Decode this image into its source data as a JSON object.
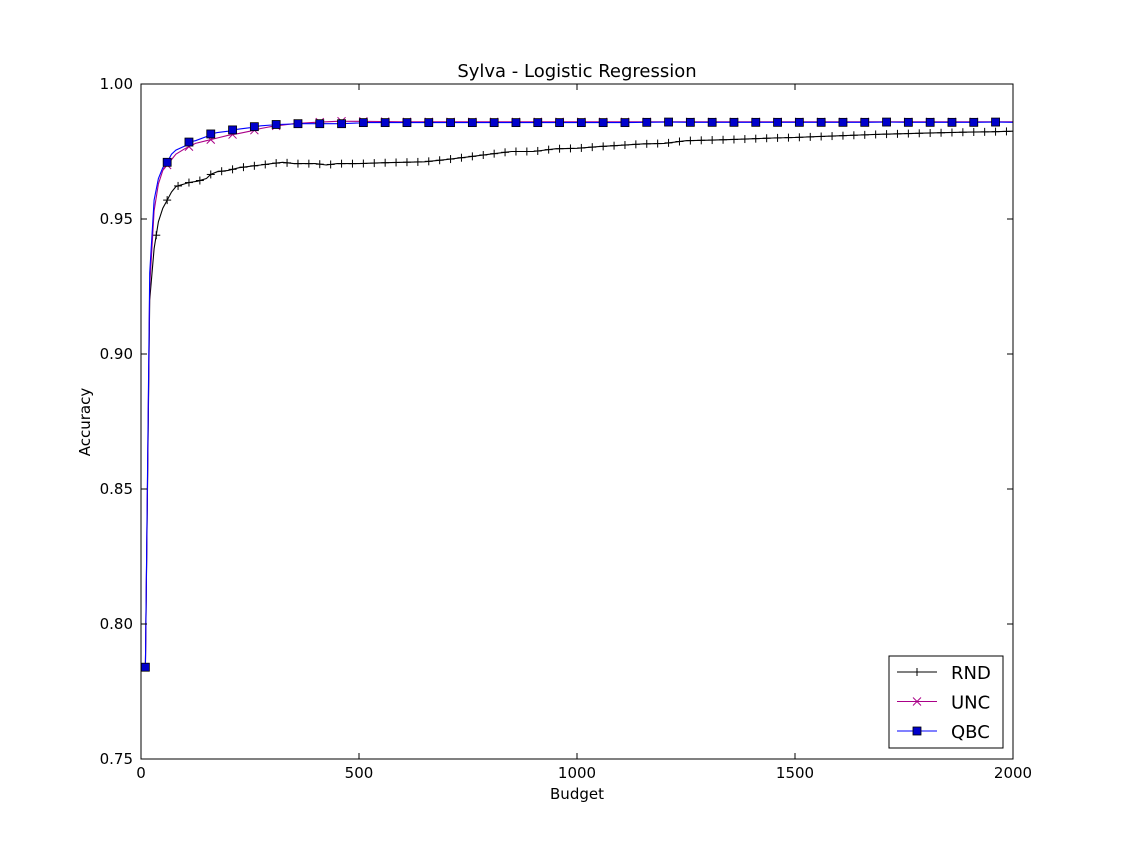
{
  "chart_data": {
    "type": "line",
    "title": "Sylva - Logistic Regression",
    "xlabel": "Budget",
    "ylabel": "Accuracy",
    "xlim": [
      0,
      2000
    ],
    "ylim": [
      0.75,
      1.0
    ],
    "xticks": [
      0,
      500,
      1000,
      1500,
      2000
    ],
    "xtick_labels": [
      "0",
      "500",
      "1000",
      "1500",
      "2000"
    ],
    "yticks": [
      0.75,
      0.8,
      0.85,
      0.9,
      0.95,
      1.0
    ],
    "ytick_labels": [
      "0.75",
      "0.80",
      "0.85",
      "0.90",
      "0.95",
      "1.00"
    ],
    "grid": false,
    "legend_position": "bottom-right",
    "series": [
      {
        "name": "RND",
        "color": "#000000",
        "marker": "plus",
        "x": [
          10,
          20,
          30,
          40,
          50,
          60,
          70,
          80,
          90,
          100,
          110,
          130,
          150,
          160,
          175,
          200,
          225,
          250,
          275,
          300,
          325,
          350,
          375,
          400,
          425,
          450,
          475,
          500,
          550,
          600,
          650,
          700,
          750,
          800,
          850,
          900,
          950,
          1000,
          1050,
          1100,
          1150,
          1200,
          1250,
          1300,
          1350,
          1400,
          1450,
          1500,
          1550,
          1600,
          1650,
          1700,
          1750,
          1800,
          1850,
          1900,
          1950,
          2000
        ],
        "y": [
          0.784,
          0.92,
          0.939,
          0.949,
          0.954,
          0.957,
          0.96,
          0.962,
          0.9625,
          0.963,
          0.9635,
          0.964,
          0.965,
          0.9665,
          0.9675,
          0.968,
          0.969,
          0.9695,
          0.97,
          0.9705,
          0.971,
          0.9705,
          0.9705,
          0.9705,
          0.97,
          0.9705,
          0.9705,
          0.9705,
          0.9708,
          0.971,
          0.9712,
          0.972,
          0.973,
          0.974,
          0.975,
          0.975,
          0.976,
          0.9762,
          0.9768,
          0.9773,
          0.9778,
          0.978,
          0.979,
          0.9792,
          0.9794,
          0.9797,
          0.98,
          0.9802,
          0.9805,
          0.9808,
          0.9811,
          0.9814,
          0.9816,
          0.9818,
          0.982,
          0.9822,
          0.9823,
          0.9825
        ],
        "marker_every": 25
      },
      {
        "name": "UNC",
        "color": "#aa0088",
        "marker": "x",
        "x": [
          10,
          20,
          30,
          40,
          50,
          60,
          70,
          80,
          100,
          125,
          150,
          175,
          200,
          225,
          250,
          275,
          300,
          350,
          400,
          450,
          500,
          550,
          600,
          700,
          800,
          900,
          1000,
          1100,
          1200,
          1300,
          1400,
          1500,
          1600,
          1700,
          1800,
          1900,
          2000
        ],
        "y": [
          0.784,
          0.925,
          0.953,
          0.963,
          0.968,
          0.97,
          0.972,
          0.974,
          0.976,
          0.978,
          0.979,
          0.98,
          0.981,
          0.9817,
          0.9825,
          0.9835,
          0.9843,
          0.9853,
          0.9858,
          0.9862,
          0.9862,
          0.9861,
          0.986,
          0.986,
          0.986,
          0.986,
          0.986,
          0.986,
          0.986,
          0.986,
          0.986,
          0.986,
          0.986,
          0.986,
          0.986,
          0.986,
          0.986
        ],
        "marker_every": 50
      },
      {
        "name": "QBC",
        "color": "#0000ff",
        "marker_fill": "#0000cc",
        "marker": "square",
        "x": [
          10,
          20,
          30,
          40,
          50,
          60,
          70,
          80,
          100,
          110,
          125,
          150,
          160,
          175,
          200,
          210,
          225,
          250,
          260,
          275,
          300,
          310,
          350,
          360,
          400,
          410,
          450,
          460,
          500,
          510,
          560,
          610,
          660,
          710,
          760,
          810,
          860,
          910,
          960,
          1010,
          1060,
          1110,
          1160,
          1210,
          1260,
          1310,
          1360,
          1410,
          1460,
          1510,
          1560,
          1610,
          1660,
          1710,
          1760,
          1810,
          1860,
          1910,
          1960,
          2000
        ],
        "y": [
          0.784,
          0.93,
          0.957,
          0.965,
          0.969,
          0.971,
          0.974,
          0.9755,
          0.977,
          0.9785,
          0.979,
          0.9805,
          0.9815,
          0.982,
          0.9825,
          0.983,
          0.9833,
          0.9838,
          0.9842,
          0.9845,
          0.9848,
          0.985,
          0.9852,
          0.9853,
          0.9853,
          0.9853,
          0.9853,
          0.9853,
          0.9856,
          0.9857,
          0.9857,
          0.9857,
          0.9857,
          0.9857,
          0.9857,
          0.9857,
          0.9857,
          0.9857,
          0.9857,
          0.9857,
          0.9857,
          0.9857,
          0.9858,
          0.9859,
          0.9858,
          0.9858,
          0.9858,
          0.9858,
          0.9858,
          0.9858,
          0.9858,
          0.9858,
          0.9858,
          0.9859,
          0.9858,
          0.9858,
          0.9858,
          0.9858,
          0.9859,
          0.9858
        ],
        "marker_x": [
          10,
          60,
          110,
          160,
          210,
          260,
          310,
          360,
          410,
          460,
          510,
          560,
          610,
          660,
          710,
          760,
          810,
          860,
          910,
          960,
          1010,
          1060,
          1110,
          1160,
          1210,
          1260,
          1310,
          1360,
          1410,
          1460,
          1510,
          1560,
          1610,
          1660,
          1710,
          1760,
          1810,
          1860,
          1910,
          1960
        ]
      }
    ]
  }
}
